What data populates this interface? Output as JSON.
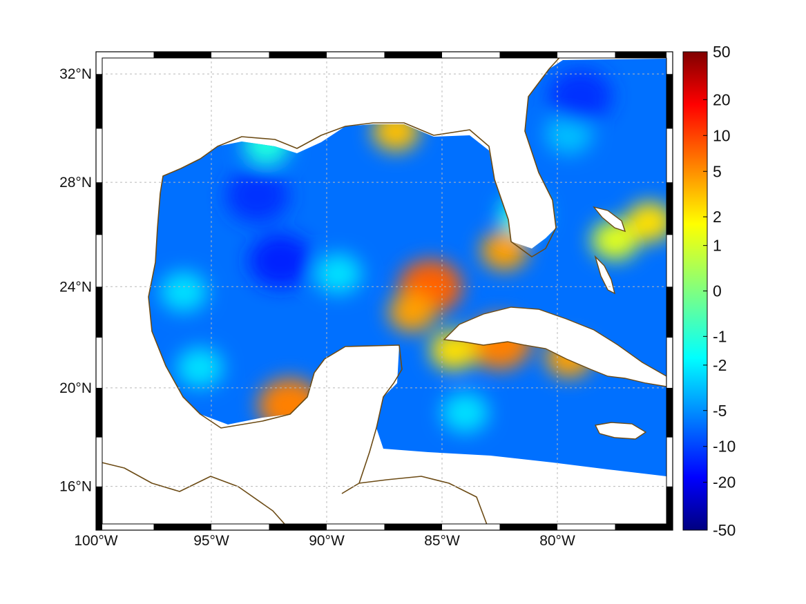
{
  "map": {
    "type": "heatmap",
    "projection": "mercator",
    "lon_range": [
      -100,
      -75
    ],
    "lat_range": [
      14.2,
      32.8
    ],
    "grid": true,
    "coastline_color": "#6b4a14",
    "frame_colors": [
      "#000000",
      "#ffffff"
    ]
  },
  "axes": {
    "lon_ticks": [
      {
        "value": -100,
        "label": "100°W"
      },
      {
        "value": -95,
        "label": "95°W"
      },
      {
        "value": -90,
        "label": "90°W"
      },
      {
        "value": -85,
        "label": "85°W"
      },
      {
        "value": -80,
        "label": "80°W"
      }
    ],
    "lat_ticks": [
      {
        "value": 16,
        "label": "16°N"
      },
      {
        "value": 20,
        "label": "20°N"
      },
      {
        "value": 24,
        "label": "24°N"
      },
      {
        "value": 28,
        "label": "28°N"
      },
      {
        "value": 32,
        "label": "32°N"
      }
    ]
  },
  "colorbar": {
    "colormap": "jet",
    "orientation": "vertical",
    "placement": "right",
    "labels": [
      "50",
      "20",
      "10",
      "5",
      "2",
      "1",
      "0",
      "-1",
      "-2",
      "-5",
      "-10",
      "-20",
      "-50"
    ]
  },
  "chart_data": {
    "type": "heatmap",
    "title": "",
    "xlabel": "",
    "ylabel": "",
    "xlim": [
      -100,
      -75
    ],
    "ylim": [
      14.2,
      32.8
    ],
    "colorbar_range": [
      -50,
      50
    ],
    "background_value": -6,
    "features": [
      {
        "name": "",
        "lon": -85.5,
        "lat": 24.0,
        "value": 7
      },
      {
        "name": "",
        "lon": -86.3,
        "lat": 23.0,
        "value": 4
      },
      {
        "name": "",
        "lon": -82.5,
        "lat": 21.8,
        "value": 5
      },
      {
        "name": "",
        "lon": -84.5,
        "lat": 21.5,
        "value": 2
      },
      {
        "name": "",
        "lon": -79.5,
        "lat": 21.2,
        "value": 4
      },
      {
        "name": "",
        "lon": -87.0,
        "lat": 29.9,
        "value": 3
      },
      {
        "name": "",
        "lon": -82.3,
        "lat": 25.4,
        "value": 4
      },
      {
        "name": "",
        "lon": -91.6,
        "lat": 19.3,
        "value": 5
      },
      {
        "name": "",
        "lon": -77.5,
        "lat": 25.8,
        "value": 1
      },
      {
        "name": "",
        "lon": -76.0,
        "lat": 26.5,
        "value": 2
      },
      {
        "name": "",
        "lon": -81.5,
        "lat": 26.8,
        "value": -1
      },
      {
        "name": "",
        "lon": -95.5,
        "lat": 20.8,
        "value": -2
      },
      {
        "name": "",
        "lon": -96.2,
        "lat": 23.8,
        "value": -2
      },
      {
        "name": "",
        "lon": -89.5,
        "lat": 24.5,
        "value": -2
      },
      {
        "name": "",
        "lon": -84.0,
        "lat": 19.0,
        "value": -2
      },
      {
        "name": "",
        "lon": -92.6,
        "lat": 29.4,
        "value": -1
      },
      {
        "name": "",
        "lon": -79.5,
        "lat": 29.8,
        "value": -3
      },
      {
        "name": "",
        "lon": -92.0,
        "lat": 25.0,
        "value": -12
      },
      {
        "name": "",
        "lon": -79.0,
        "lat": 31.2,
        "value": -10
      },
      {
        "name": "",
        "lon": -93.0,
        "lat": 27.5,
        "value": -10
      }
    ]
  }
}
